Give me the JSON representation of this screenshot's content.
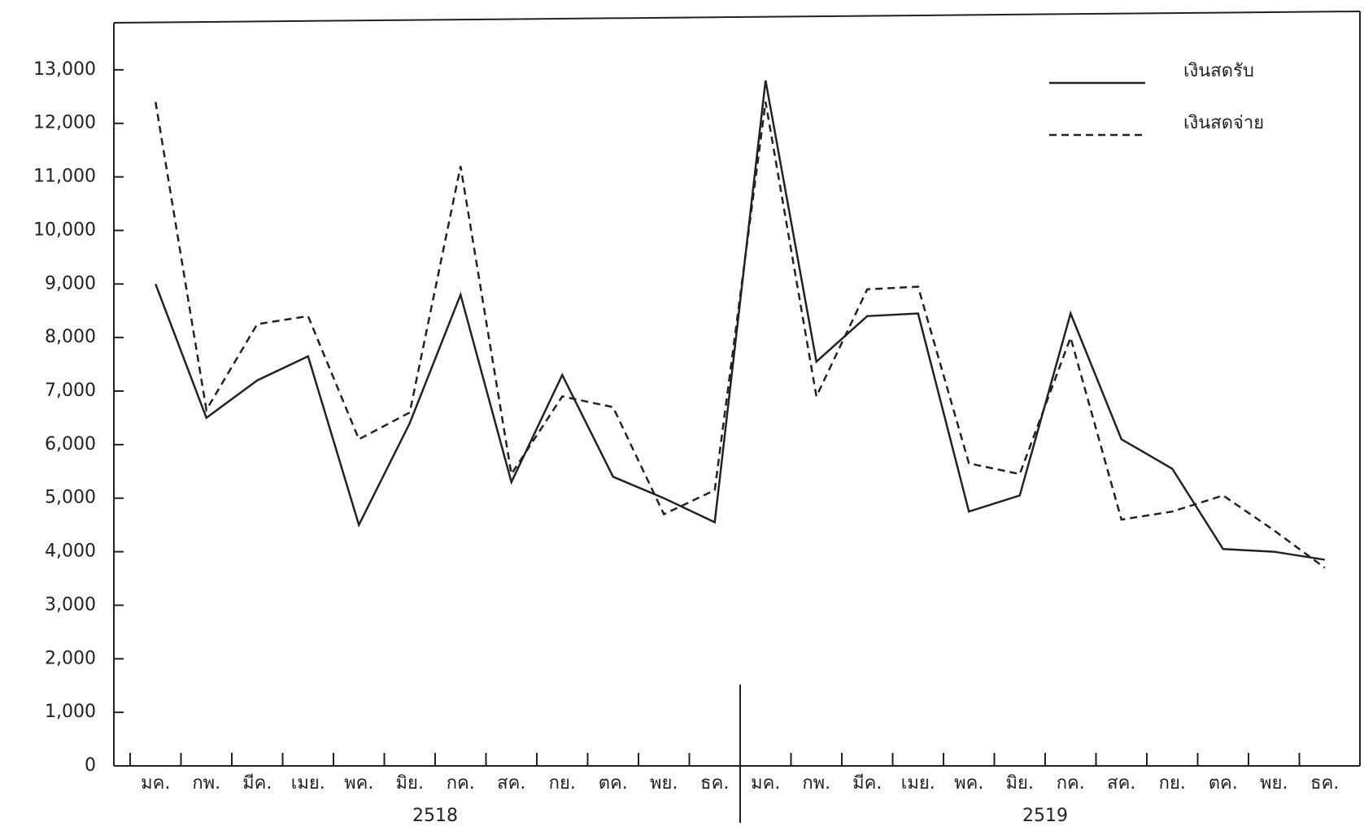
{
  "chart_data": {
    "type": "line",
    "categories": [
      "มค.",
      "กพ.",
      "มีค.",
      "เมย.",
      "พค.",
      "มิย.",
      "กค.",
      "สค.",
      "กย.",
      "ตค.",
      "พย.",
      "ธค.",
      "มค.",
      "กพ.",
      "มีค.",
      "เมย.",
      "พค.",
      "มิย.",
      "กค.",
      "สค.",
      "กย.",
      "ตค.",
      "พย.",
      "ธค."
    ],
    "groups": [
      "2518",
      "2519"
    ],
    "series": [
      {
        "name": "เงินสดรับ",
        "color": "#222222",
        "style": "solid",
        "values": [
          9000,
          6500,
          7200,
          7650,
          4500,
          6400,
          8800,
          5300,
          7300,
          5400,
          5000,
          4550,
          12800,
          7550,
          8400,
          8450,
          4750,
          5050,
          8450,
          6100,
          5550,
          4050,
          4000,
          3850
        ]
      },
      {
        "name": "เงินสดจ่าย",
        "color": "#222222",
        "style": "dashed",
        "values": [
          12400,
          6650,
          8250,
          8400,
          6100,
          6600,
          11200,
          5450,
          6900,
          6700,
          4700,
          5150,
          12400,
          6900,
          8900,
          8950,
          5650,
          5450,
          8000,
          4600,
          4750,
          5050,
          4400,
          3700
        ]
      }
    ],
    "ylim": [
      0,
      14000
    ],
    "yticks": [
      0,
      {
        "value": 1000,
        "label": "1,000"
      },
      {
        "value": 2000,
        "label": "2,000"
      },
      {
        "value": 3000,
        "label": "3,000"
      },
      {
        "value": 4000,
        "label": "4,000"
      },
      {
        "value": 5000,
        "label": "5,000"
      },
      {
        "value": 6000,
        "label": "6,000"
      },
      {
        "value": 7000,
        "label": "7,000"
      },
      {
        "value": 8000,
        "label": "8,000"
      },
      {
        "value": 9000,
        "label": "9,000"
      },
      {
        "value": 10000,
        "label": "10,000"
      },
      {
        "value": 11000,
        "label": "11,000"
      },
      {
        "value": 12000,
        "label": "12,000"
      },
      {
        "value": 13000,
        "label": "13,000"
      }
    ],
    "legend": "top-right"
  }
}
